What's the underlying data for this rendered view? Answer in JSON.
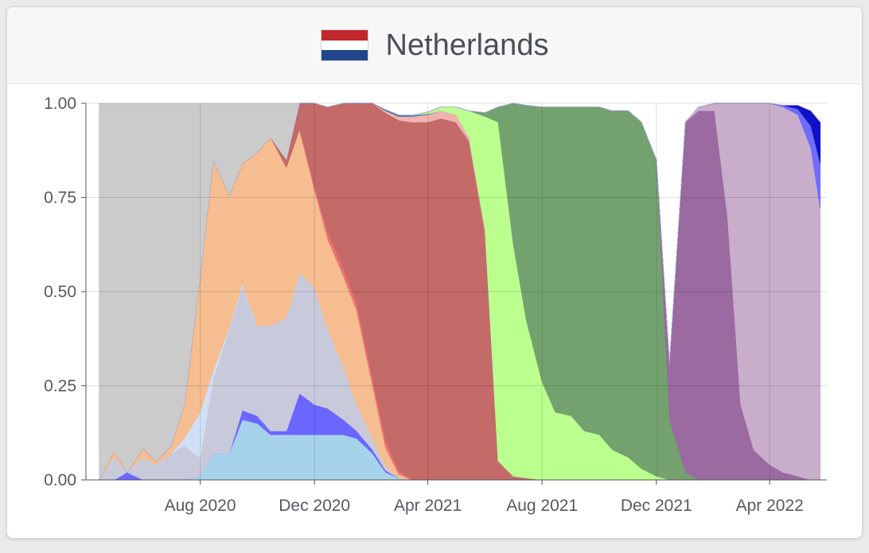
{
  "header": {
    "title": "Netherlands",
    "flag_colors": [
      "#c1272d",
      "#ffffff",
      "#21468b"
    ]
  },
  "chart_data": {
    "type": "area",
    "stacked": true,
    "normalized": true,
    "title": "Netherlands",
    "xlabel": "",
    "ylabel": "",
    "ylim": [
      0,
      1
    ],
    "xlim": [
      "2020-04-01",
      "2022-06-01"
    ],
    "grid": true,
    "legend": "none",
    "y_ticks": [
      {
        "value": 0,
        "label": "0.00"
      },
      {
        "value": 0.25,
        "label": "0.25"
      },
      {
        "value": 0.5,
        "label": "0.50"
      },
      {
        "value": 0.75,
        "label": "0.75"
      },
      {
        "value": 1,
        "label": "1.00"
      }
    ],
    "x_ticks": [
      {
        "value": "2020-08-01",
        "label": "Aug 2020"
      },
      {
        "value": "2020-12-01",
        "label": "Dec 2020"
      },
      {
        "value": "2021-04-01",
        "label": "Apr 2021"
      },
      {
        "value": "2021-08-01",
        "label": "Aug 2021"
      },
      {
        "value": "2021-12-01",
        "label": "Dec 2021"
      },
      {
        "value": "2022-04-01",
        "label": "Apr 2022"
      }
    ],
    "x": [
      "2020-04-15",
      "2020-05-01",
      "2020-05-15",
      "2020-06-01",
      "2020-06-15",
      "2020-07-01",
      "2020-07-15",
      "2020-08-01",
      "2020-08-15",
      "2020-09-01",
      "2020-09-15",
      "2020-10-01",
      "2020-10-15",
      "2020-11-01",
      "2020-11-15",
      "2020-12-01",
      "2020-12-15",
      "2021-01-01",
      "2021-01-15",
      "2021-02-01",
      "2021-02-15",
      "2021-03-01",
      "2021-03-15",
      "2021-04-01",
      "2021-04-15",
      "2021-05-01",
      "2021-05-15",
      "2021-06-01",
      "2021-06-15",
      "2021-07-01",
      "2021-07-15",
      "2021-08-01",
      "2021-08-15",
      "2021-09-01",
      "2021-09-15",
      "2021-10-01",
      "2021-10-15",
      "2021-11-01",
      "2021-11-15",
      "2021-12-01",
      "2021-12-15",
      "2022-01-01",
      "2022-01-15",
      "2022-02-01",
      "2022-02-15",
      "2022-03-01",
      "2022-03-15",
      "2022-04-01",
      "2022-04-15",
      "2022-05-01",
      "2022-05-15",
      "2022-05-25"
    ],
    "series": [
      {
        "color": "#a7d2ec",
        "values": [
          0,
          0,
          0,
          0,
          0,
          0,
          0,
          0.01,
          0.07,
          0.07,
          0.16,
          0.15,
          0.12,
          0.12,
          0.12,
          0.12,
          0.12,
          0.12,
          0.11,
          0.07,
          0.02,
          0.005,
          0,
          0,
          0,
          0,
          0,
          0,
          0,
          0,
          0,
          0,
          0,
          0,
          0,
          0,
          0,
          0,
          0,
          0,
          0,
          0,
          0,
          0,
          0,
          0,
          0,
          0,
          0,
          0,
          0,
          0
        ]
      },
      {
        "color": "#6a66ff",
        "values": [
          0,
          0,
          0.02,
          0,
          0,
          0,
          0,
          0,
          0,
          0,
          0.025,
          0.02,
          0.01,
          0.01,
          0.11,
          0.08,
          0.07,
          0.04,
          0.02,
          0.01,
          0.005,
          0,
          0,
          0,
          0,
          0,
          0,
          0,
          0,
          0,
          0,
          0,
          0,
          0,
          0,
          0,
          0,
          0,
          0,
          0,
          0,
          0,
          0,
          0,
          0,
          0,
          0,
          0,
          0,
          0,
          0,
          0
        ]
      },
      {
        "color": "#c9c9dc",
        "values": [
          0,
          0.06,
          0,
          0.06,
          0.04,
          0.07,
          0.09,
          0.05,
          0.2,
          0.33,
          0.33,
          0.24,
          0.28,
          0.3,
          0.32,
          0.31,
          0.21,
          0.14,
          0.07,
          0.03,
          0.01,
          0,
          0,
          0,
          0,
          0,
          0,
          0,
          0,
          0,
          0,
          0,
          0,
          0,
          0,
          0,
          0,
          0,
          0,
          0,
          0,
          0,
          0,
          0,
          0,
          0,
          0,
          0,
          0,
          0,
          0,
          0
        ]
      },
      {
        "color": "#cfe0f5",
        "values": [
          0,
          0,
          0,
          0,
          0,
          0,
          0.02,
          0.12,
          0.02,
          0.005,
          0.005,
          0,
          0,
          0,
          0,
          0,
          0,
          0,
          0,
          0,
          0,
          0,
          0,
          0,
          0,
          0,
          0,
          0,
          0,
          0,
          0,
          0,
          0,
          0,
          0,
          0,
          0,
          0,
          0,
          0,
          0,
          0,
          0,
          0,
          0,
          0,
          0,
          0,
          0,
          0,
          0,
          0
        ]
      },
      {
        "color": "#f5bd90",
        "values": [
          0,
          0.015,
          0,
          0.025,
          0.01,
          0.02,
          0.09,
          0.36,
          0.56,
          0.35,
          0.32,
          0.46,
          0.5,
          0.4,
          0.38,
          0.26,
          0.24,
          0.24,
          0.25,
          0.14,
          0.05,
          0.01,
          0,
          0,
          0,
          0,
          0,
          0,
          0,
          0,
          0,
          0,
          0,
          0,
          0,
          0,
          0,
          0,
          0,
          0,
          0,
          0,
          0,
          0,
          0,
          0,
          0,
          0,
          0,
          0,
          0,
          0
        ]
      },
      {
        "color": "#f07070",
        "values": [
          0,
          0,
          0,
          0,
          0,
          0,
          0,
          0,
          0,
          0,
          0,
          0,
          0,
          0,
          0,
          0.01,
          0.02,
          0.02,
          0.02,
          0.02,
          0.02,
          0.01,
          0,
          0,
          0,
          0,
          0,
          0,
          0,
          0,
          0,
          0,
          0,
          0,
          0,
          0,
          0,
          0,
          0,
          0,
          0,
          0,
          0,
          0,
          0,
          0,
          0,
          0,
          0,
          0,
          0,
          0
        ]
      },
      {
        "color": "#c46a68",
        "values": [
          0,
          0,
          0,
          0,
          0,
          0,
          0,
          0,
          0,
          0,
          0,
          0,
          0,
          0.02,
          0.07,
          0.22,
          0.33,
          0.49,
          0.61,
          0.77,
          0.87,
          0.93,
          0.95,
          0.95,
          0.96,
          0.95,
          0.9,
          0.66,
          0.05,
          0.01,
          0.005,
          0,
          0,
          0,
          0,
          0,
          0,
          0,
          0,
          0,
          0,
          0,
          0,
          0,
          0,
          0,
          0,
          0,
          0,
          0,
          0,
          0
        ]
      },
      {
        "color": "#f0b2b0",
        "values": [
          0,
          0,
          0,
          0,
          0,
          0,
          0,
          0,
          0,
          0,
          0,
          0,
          0,
          0,
          0,
          0,
          0,
          0,
          0,
          0.005,
          0.005,
          0.01,
          0.015,
          0.02,
          0.02,
          0.02,
          0.01,
          0.005,
          0,
          0,
          0,
          0,
          0,
          0,
          0,
          0,
          0,
          0,
          0,
          0,
          0,
          0,
          0,
          0,
          0,
          0,
          0,
          0,
          0,
          0,
          0,
          0
        ]
      },
      {
        "color": "#3a6fae",
        "values": [
          0,
          0,
          0,
          0,
          0,
          0,
          0,
          0,
          0,
          0,
          0,
          0,
          0,
          0,
          0,
          0,
          0,
          0,
          0,
          0,
          0.003,
          0.004,
          0.003,
          0.002,
          0,
          0,
          0,
          0,
          0,
          0,
          0,
          0,
          0,
          0,
          0,
          0,
          0,
          0,
          0,
          0,
          0,
          0,
          0,
          0,
          0,
          0,
          0,
          0,
          0,
          0,
          0,
          0
        ]
      },
      {
        "color": "#bbff8f",
        "values": [
          0,
          0,
          0,
          0,
          0,
          0,
          0,
          0,
          0,
          0,
          0,
          0,
          0,
          0,
          0,
          0,
          0,
          0,
          0,
          0,
          0,
          0,
          0,
          0.005,
          0.01,
          0.02,
          0.07,
          0.3,
          0.9,
          0.62,
          0.42,
          0.26,
          0.18,
          0.17,
          0.13,
          0.12,
          0.08,
          0.06,
          0.03,
          0.01,
          0,
          0,
          0,
          0,
          0,
          0,
          0,
          0,
          0,
          0,
          0,
          0
        ]
      },
      {
        "color": "#74a26f",
        "values": [
          0,
          0,
          0,
          0,
          0,
          0,
          0,
          0,
          0,
          0,
          0,
          0,
          0,
          0,
          0,
          0,
          0,
          0,
          0,
          0,
          0,
          0,
          0,
          0,
          0,
          0,
          0,
          0.01,
          0.04,
          0.37,
          0.57,
          0.73,
          0.81,
          0.82,
          0.86,
          0.87,
          0.9,
          0.92,
          0.92,
          0.84,
          0.16,
          0.02,
          0,
          0,
          0,
          0,
          0,
          0,
          0,
          0,
          0,
          0
        ]
      },
      {
        "color": "#9a6aa0",
        "values": [
          0,
          0,
          0,
          0,
          0,
          0,
          0,
          0,
          0,
          0,
          0,
          0,
          0,
          0,
          0,
          0,
          0,
          0,
          0,
          0,
          0,
          0,
          0,
          0,
          0,
          0,
          0,
          0,
          0,
          0,
          0,
          0,
          0,
          0,
          0,
          0,
          0,
          0,
          0,
          0,
          0.15,
          0.93,
          0.98,
          0.98,
          0.7,
          0.2,
          0.08,
          0.04,
          0.02,
          0.01,
          0,
          0
        ]
      },
      {
        "color": "#c9aecb",
        "values": [
          0,
          0,
          0,
          0,
          0,
          0,
          0,
          0,
          0,
          0,
          0,
          0,
          0,
          0,
          0,
          0,
          0,
          0,
          0,
          0,
          0,
          0,
          0,
          0,
          0,
          0,
          0,
          0,
          0,
          0,
          0,
          0,
          0,
          0,
          0,
          0,
          0,
          0,
          0,
          0,
          0,
          0,
          0.01,
          0.02,
          0.3,
          0.8,
          0.92,
          0.96,
          0.97,
          0.96,
          0.88,
          0.72
        ]
      },
      {
        "color": "#6f6cff",
        "values": [
          0,
          0,
          0,
          0,
          0,
          0,
          0,
          0,
          0,
          0,
          0,
          0,
          0,
          0,
          0,
          0,
          0,
          0,
          0,
          0,
          0,
          0,
          0,
          0,
          0,
          0,
          0,
          0,
          0,
          0,
          0,
          0,
          0,
          0,
          0,
          0,
          0,
          0,
          0,
          0,
          0,
          0,
          0,
          0,
          0,
          0,
          0,
          0,
          0.005,
          0.015,
          0.06,
          0.12
        ]
      },
      {
        "color": "#1010c8",
        "values": [
          0,
          0,
          0,
          0,
          0,
          0,
          0,
          0,
          0,
          0,
          0,
          0,
          0,
          0,
          0,
          0,
          0,
          0,
          0,
          0,
          0,
          0,
          0,
          0,
          0,
          0,
          0,
          0,
          0,
          0,
          0,
          0,
          0,
          0,
          0,
          0,
          0,
          0,
          0,
          0,
          0,
          0,
          0,
          0,
          0,
          0,
          0,
          0,
          0,
          0.01,
          0.04,
          0.11
        ]
      },
      {
        "color": "#cbcbcb",
        "values": [
          1,
          0.925,
          0.98,
          0.915,
          0.95,
          0.91,
          0.8,
          0.46,
          0.15,
          0.245,
          0.16,
          0.13,
          0.09,
          0.15,
          0,
          0,
          0,
          0,
          0,
          0,
          0,
          0,
          0,
          0,
          0,
          0,
          0,
          0,
          0,
          0,
          0,
          0,
          0,
          0,
          0,
          0,
          0,
          0,
          0,
          0,
          0,
          0,
          0,
          0,
          0,
          0,
          0,
          0,
          0,
          0,
          0,
          0
        ]
      }
    ]
  }
}
